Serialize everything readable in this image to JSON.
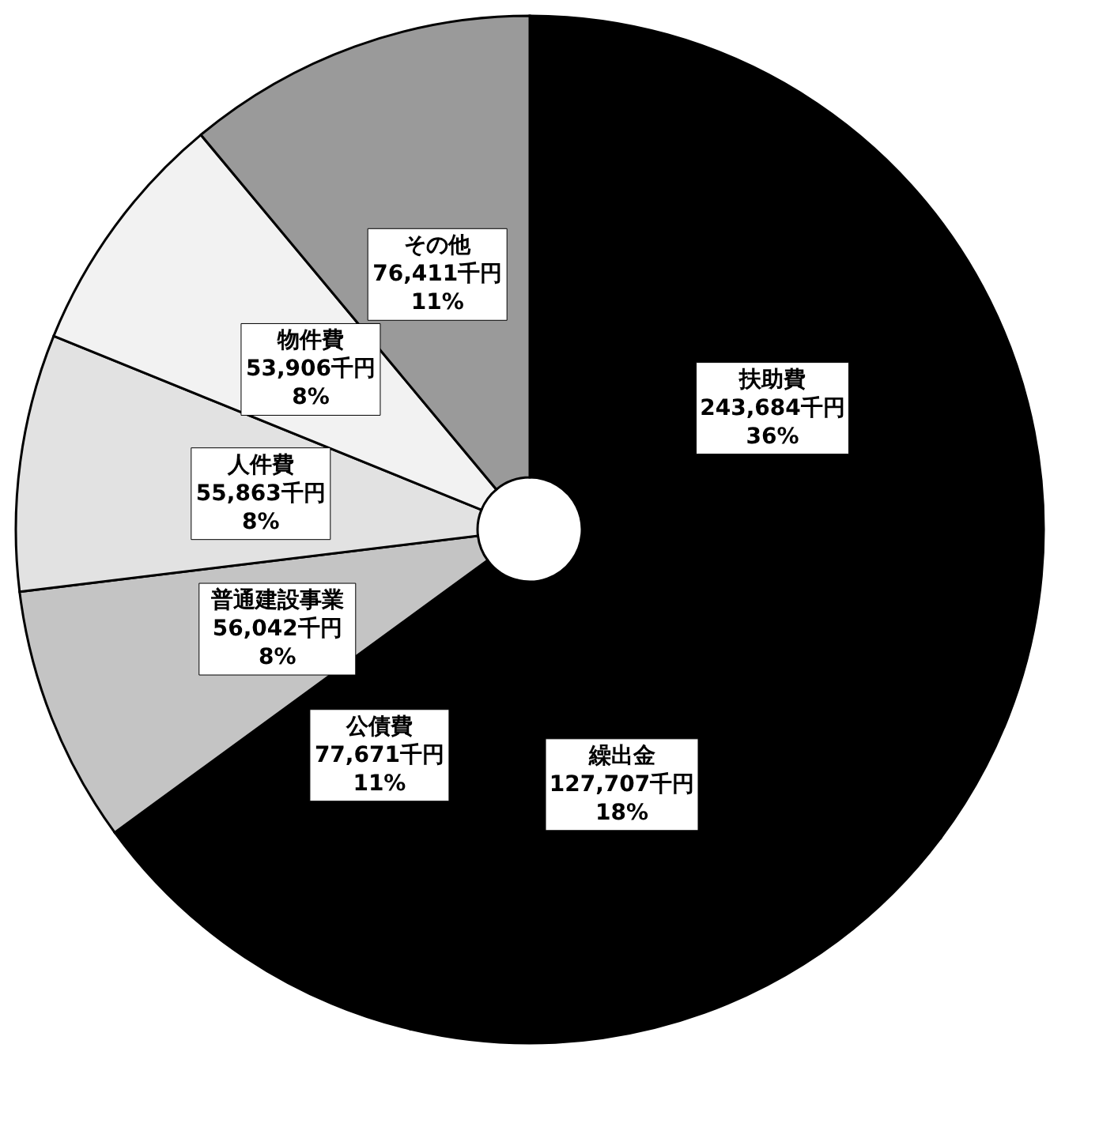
{
  "chart_data": {
    "type": "pie",
    "categories": [
      "扶助費",
      "繰出金",
      "公債費",
      "普通建設事業",
      "人件費",
      "物件費",
      "その他"
    ],
    "values": [
      243684,
      127707,
      77671,
      56042,
      55863,
      53906,
      76411
    ],
    "value_labels": [
      "243,684千円\n36%",
      "127,707千円\n18%",
      "77,671千円\n11%",
      "56,042千円\n8%",
      "55,863千円\n8%",
      "53,906千円\n8%",
      "76,411千円\n11%"
    ],
    "colors": [
      "#000000",
      "#000000",
      "#000000",
      "#c4c4c4",
      "#e2e2e2",
      "#f2f2f2",
      "#9a9a9a"
    ],
    "legend": false
  }
}
